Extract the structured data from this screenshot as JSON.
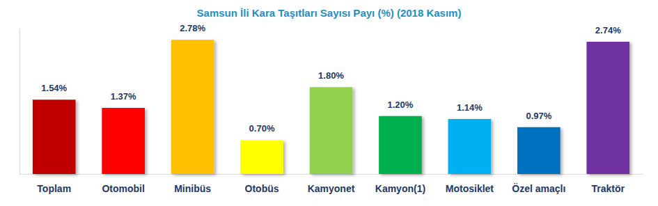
{
  "chart_data": {
    "type": "bar",
    "title": "Samsun İli Kara Taşıtları Sayısı Payı (%) (2018 Kasım)",
    "categories": [
      "Toplam",
      "Otomobil",
      "Minibüs",
      "Otobüs",
      "Kamyonet",
      "Kamyon(1)",
      "Motosiklet",
      "Özel amaçlı",
      "Traktör"
    ],
    "values": [
      1.54,
      1.37,
      2.78,
      0.7,
      1.8,
      1.2,
      1.14,
      0.97,
      2.74
    ],
    "value_labels": [
      "1.54%",
      "1.37%",
      "2.78%",
      "0.70%",
      "1.80%",
      "1.20%",
      "1.14%",
      "0.97%",
      "2.74%"
    ],
    "colors": [
      "#C00000",
      "#FF0000",
      "#FFC000",
      "#FFFF00",
      "#92D050",
      "#00B050",
      "#00B0F0",
      "#0070C0",
      "#7030A0"
    ],
    "ylim": [
      0,
      3
    ],
    "grid": false,
    "data_labels": true,
    "tick_labels": "x"
  }
}
